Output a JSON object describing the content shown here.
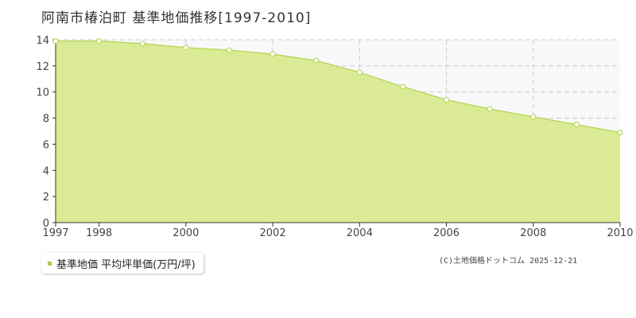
{
  "chart_data": {
    "type": "area",
    "title": "阿南市椿泊町 基準地価推移[1997-2010]",
    "x": [
      1997,
      1998,
      1999,
      2000,
      2001,
      2002,
      2003,
      2004,
      2005,
      2006,
      2007,
      2008,
      2009,
      2010
    ],
    "x_tick_labels": [
      "1997",
      "1998",
      "2000",
      "2002",
      "2004",
      "2006",
      "2008",
      "2010"
    ],
    "xlim": [
      1997,
      2010
    ],
    "ylim": [
      0,
      14
    ],
    "y_ticks": [
      0,
      2,
      4,
      6,
      8,
      10,
      12,
      14
    ],
    "grid": true,
    "legend_placement": "bottom-left",
    "series": [
      {
        "name": "基準地価 平均坪単価(万円/坪)",
        "values": [
          13.9,
          13.9,
          13.7,
          13.4,
          13.2,
          12.9,
          12.4,
          11.5,
          10.4,
          9.4,
          8.7,
          8.1,
          7.5,
          6.9
        ]
      }
    ]
  },
  "colors": {
    "area_fill": "#dbeb95",
    "line": "#bad85c",
    "marker_fill": "#ffffff",
    "legend_marker": "#a8d23c",
    "grid": "#cccccc",
    "plot_background": "#f9f9fb",
    "axis": "#333333"
  },
  "copyright": "(C)土地価格ドットコム 2025-12-21"
}
